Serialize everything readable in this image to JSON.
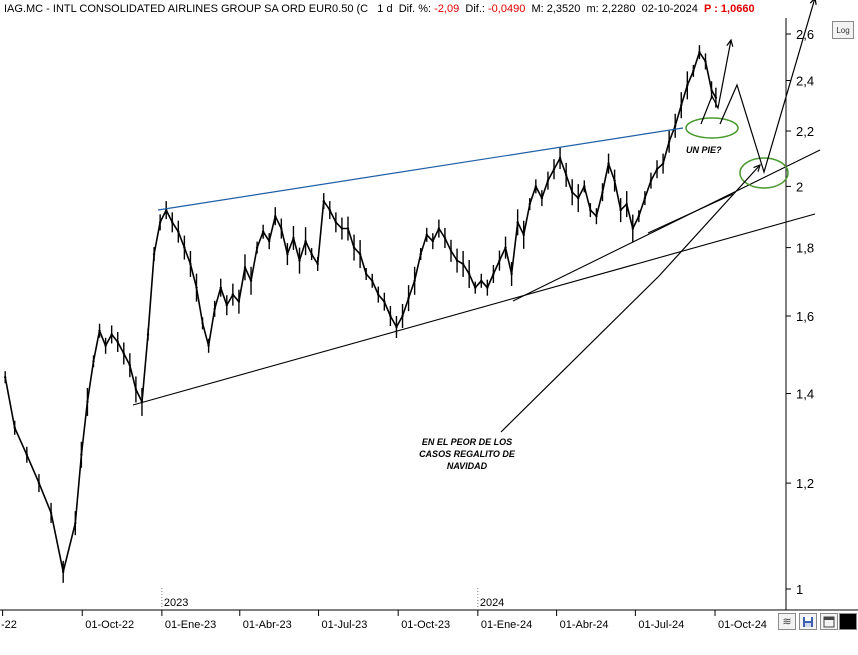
{
  "header": {
    "symbol": "IAG.MC - INTL CONSOLIDATED AIRLINES GROUP SA ORD EUR0.50 (C",
    "period": "1 d",
    "dif_pct_label": "Dif. %:",
    "dif_pct_value": "-2,09",
    "dif_label": "Dif.:",
    "dif_value": "-0,0490",
    "max_label": "M:",
    "max_value": "2,3520",
    "min_label": "m:",
    "min_value": "2,2280",
    "date_value": "02-10-2024",
    "p_label": "P :",
    "p_value": "1,0660"
  },
  "toolbar": {
    "log_label": "Log"
  },
  "colors": {
    "price": "#000000",
    "upper_trendline": "#1f5fa8",
    "ellipse": "#4a9a30",
    "annotation": "#000000",
    "axis": "#000000"
  },
  "chart_data": {
    "type": "line",
    "title": "IAG.MC - INTL CONSOLIDATED AIRLINES GROUP SA ORD EUR0.50",
    "xlabel": "",
    "ylabel": "",
    "yscale": "log",
    "ylim": [
      0.95,
      2.72
    ],
    "y_ticks": [
      1,
      1.2,
      1.4,
      1.6,
      1.8,
      2,
      2.2,
      2.4,
      2.6
    ],
    "y_tick_labels": [
      "1",
      "1,2",
      "1,4",
      "1,6",
      "1,8",
      "2",
      "2,2",
      "2,4",
      "2,6"
    ],
    "x_tick_labels": [
      "-22",
      "01-Oct-22",
      "01-Ene-23",
      "01-Abr-23",
      "01-Jul-23",
      "01-Oct-23",
      "01-Ene-24",
      "01-Abr-24",
      "01-Jul-24",
      "01-Oct-24"
    ],
    "x_tick_dates": [
      "2022-07-01",
      "2022-10-01",
      "2023-01-01",
      "2023-04-01",
      "2023-07-01",
      "2023-10-01",
      "2024-01-01",
      "2024-04-01",
      "2024-07-01",
      "2024-10-01"
    ],
    "year_labels": [
      "2023",
      "2024"
    ],
    "year_dates": [
      "2023-01-01",
      "2024-01-01"
    ],
    "xlim": [
      "2022-07-01",
      "2025-01-15"
    ],
    "grid": false,
    "series": [
      {
        "x": [
          "2022-07-04",
          "2022-07-15",
          "2022-07-29",
          "2022-08-12",
          "2022-08-26",
          "2022-09-09",
          "2022-09-23",
          "2022-09-30",
          "2022-10-07",
          "2022-10-14",
          "2022-10-21",
          "2022-10-28",
          "2022-11-04",
          "2022-11-11",
          "2022-11-18",
          "2022-11-25",
          "2022-12-02",
          "2022-12-09",
          "2022-12-16",
          "2022-12-23",
          "2022-12-30",
          "2023-01-06",
          "2023-01-13",
          "2023-01-20",
          "2023-01-27",
          "2023-02-03",
          "2023-02-10",
          "2023-02-17",
          "2023-02-24",
          "2023-03-03",
          "2023-03-10",
          "2023-03-17",
          "2023-03-24",
          "2023-03-31",
          "2023-04-07",
          "2023-04-14",
          "2023-04-21",
          "2023-04-28",
          "2023-05-05",
          "2023-05-12",
          "2023-05-19",
          "2023-05-26",
          "2023-06-02",
          "2023-06-09",
          "2023-06-16",
          "2023-06-23",
          "2023-06-30",
          "2023-07-07",
          "2023-07-14",
          "2023-07-21",
          "2023-07-28",
          "2023-08-04",
          "2023-08-11",
          "2023-08-18",
          "2023-08-25",
          "2023-09-01",
          "2023-09-08",
          "2023-09-15",
          "2023-09-22",
          "2023-09-29",
          "2023-10-06",
          "2023-10-13",
          "2023-10-20",
          "2023-10-27",
          "2023-11-03",
          "2023-11-10",
          "2023-11-17",
          "2023-11-24",
          "2023-12-01",
          "2023-12-08",
          "2023-12-15",
          "2023-12-22",
          "2023-12-29",
          "2024-01-05",
          "2024-01-12",
          "2024-01-19",
          "2024-01-26",
          "2024-02-02",
          "2024-02-09",
          "2024-02-16",
          "2024-02-23",
          "2024-03-01",
          "2024-03-08",
          "2024-03-15",
          "2024-03-22",
          "2024-03-29",
          "2024-04-05",
          "2024-04-12",
          "2024-04-19",
          "2024-04-26",
          "2024-05-03",
          "2024-05-10",
          "2024-05-17",
          "2024-05-24",
          "2024-05-31",
          "2024-06-07",
          "2024-06-14",
          "2024-06-21",
          "2024-06-28",
          "2024-07-05",
          "2024-07-12",
          "2024-07-19",
          "2024-07-26",
          "2024-08-02",
          "2024-08-09",
          "2024-08-16",
          "2024-08-23",
          "2024-08-30",
          "2024-09-06",
          "2024-09-13",
          "2024-09-20",
          "2024-09-27",
          "2024-10-02"
        ],
        "values": [
          1.44,
          1.32,
          1.26,
          1.2,
          1.14,
          1.03,
          1.12,
          1.26,
          1.38,
          1.48,
          1.56,
          1.52,
          1.55,
          1.53,
          1.5,
          1.47,
          1.41,
          1.38,
          1.55,
          1.78,
          1.88,
          1.92,
          1.88,
          1.85,
          1.8,
          1.75,
          1.68,
          1.58,
          1.52,
          1.62,
          1.68,
          1.63,
          1.66,
          1.64,
          1.74,
          1.7,
          1.8,
          1.85,
          1.82,
          1.9,
          1.86,
          1.78,
          1.83,
          1.76,
          1.82,
          1.78,
          1.75,
          1.95,
          1.92,
          1.88,
          1.86,
          1.86,
          1.8,
          1.78,
          1.72,
          1.7,
          1.66,
          1.64,
          1.6,
          1.57,
          1.6,
          1.65,
          1.7,
          1.78,
          1.84,
          1.82,
          1.86,
          1.83,
          1.79,
          1.76,
          1.75,
          1.72,
          1.68,
          1.7,
          1.68,
          1.72,
          1.76,
          1.8,
          1.72,
          1.88,
          1.84,
          1.94,
          2.0,
          1.96,
          2.02,
          2.06,
          2.1,
          2.04,
          1.98,
          1.96,
          2.0,
          1.92,
          1.9,
          1.98,
          2.08,
          2.02,
          1.92,
          1.94,
          1.86,
          1.9,
          1.96,
          2.02,
          2.06,
          2.08,
          2.16,
          2.22,
          2.3,
          2.38,
          2.44,
          2.52,
          2.48,
          2.36,
          2.33
        ]
      }
    ],
    "annotations": [
      {
        "text": "UN PIE?"
      },
      {
        "text": "EN EL PEOR DE LOS CASOS REGALITO DE NAVIDAD"
      }
    ]
  }
}
